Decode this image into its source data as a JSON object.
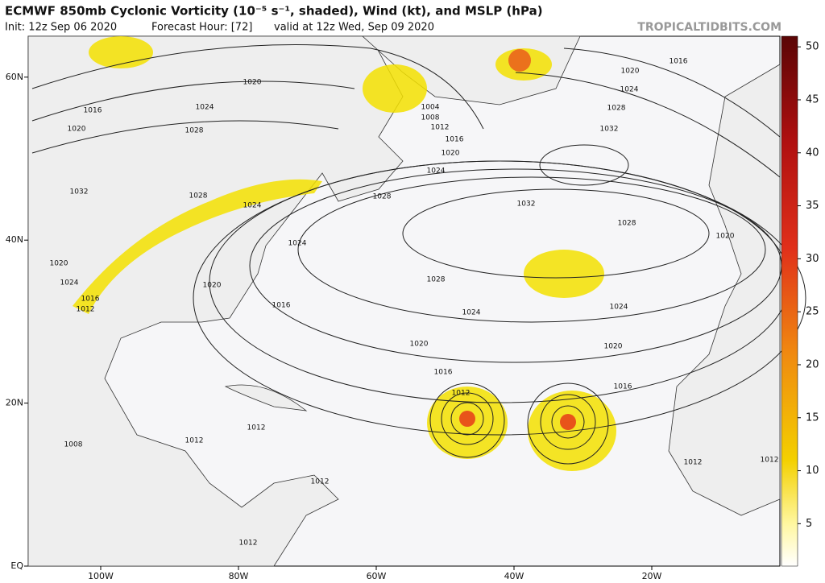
{
  "header": {
    "title": "ECMWF 850mb Cyclonic Vorticity (10⁻⁵ s⁻¹, shaded), Wind (kt), and MSLP (hPa)",
    "init": "Init: 12z Sep 06 2020",
    "forecast_hour": "Forecast Hour: [72]",
    "valid": "valid at 12z Wed, Sep 09 2020",
    "watermark": "TROPICALTIDBITS.COM"
  },
  "map": {
    "lat_ticks": [
      {
        "value": 60,
        "label": "60N"
      },
      {
        "value": 40,
        "label": "40N"
      },
      {
        "value": 20,
        "label": "20N"
      },
      {
        "value": 0,
        "label": "EQ"
      }
    ],
    "lon_ticks": [
      {
        "value": -100,
        "label": "100W"
      },
      {
        "value": -80,
        "label": "80W"
      },
      {
        "value": -60,
        "label": "60W"
      },
      {
        "value": -40,
        "label": "40W"
      },
      {
        "value": -20,
        "label": "20W"
      }
    ],
    "isobar_labels": [
      1020,
      1016,
      1020,
      1024,
      1028,
      1032,
      1028,
      1024,
      1024,
      1020,
      1024,
      1016,
      1012,
      1020,
      1016,
      1004,
      1008,
      1012,
      1016,
      1020,
      1024,
      1028,
      1032,
      1028,
      1028,
      1024,
      1020,
      1016,
      1032,
      1028,
      1024,
      1024,
      1020,
      1020,
      1016,
      1016,
      1012,
      1012,
      1012,
      1012,
      1012,
      1008,
      1012,
      1012,
      1020
    ]
  },
  "colorbar": {
    "lim": [
      1,
      51
    ],
    "ticks": [
      5,
      10,
      15,
      20,
      25,
      30,
      35,
      40,
      45,
      50
    ]
  }
}
